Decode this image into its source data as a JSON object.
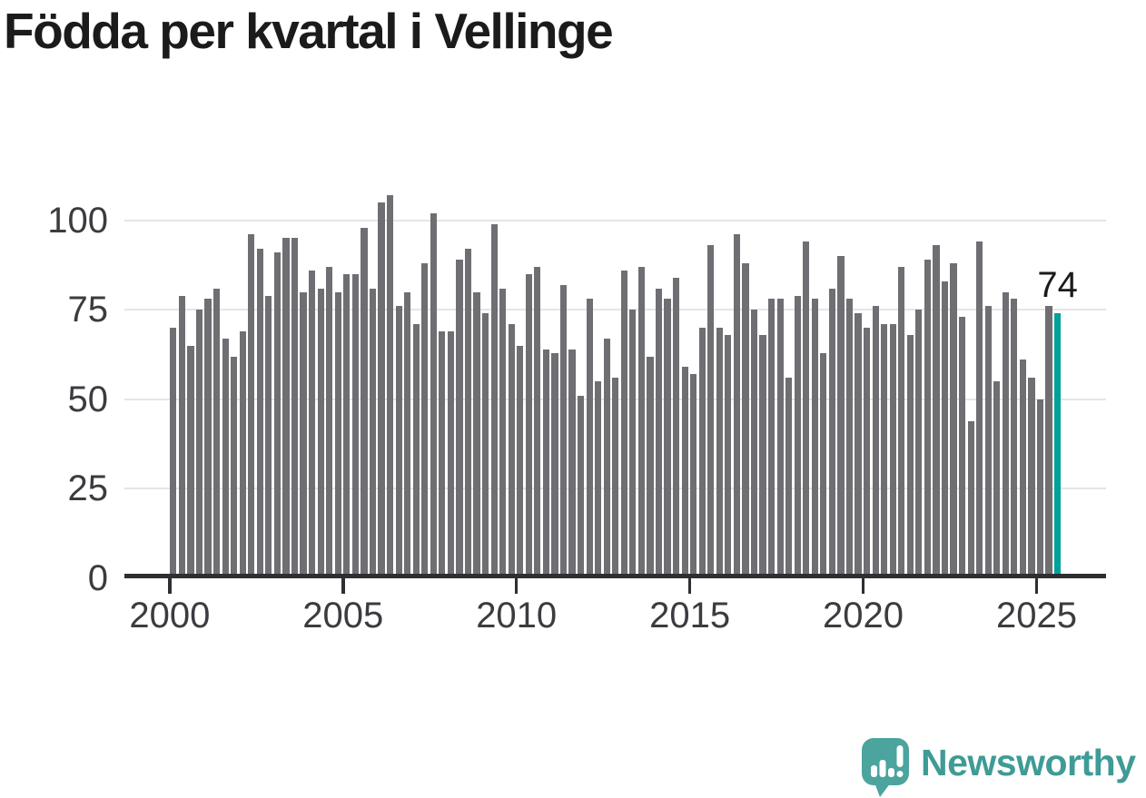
{
  "chart_data": {
    "type": "bar",
    "title": "Födda per kvartal i Vellinge",
    "xlabel": "",
    "ylabel": "",
    "x_start": "2000-Q1",
    "x_end": "2025-Q3",
    "x_tick_labels": [
      "2000",
      "2005",
      "2010",
      "2015",
      "2020",
      "2025"
    ],
    "quarters_per_x_tick": 20,
    "y_ticks": [
      0,
      25,
      50,
      75,
      100
    ],
    "ylim": [
      0,
      112
    ],
    "grid": true,
    "legend": "none",
    "values": [
      70,
      79,
      65,
      75,
      78,
      81,
      67,
      62,
      69,
      96,
      92,
      79,
      91,
      95,
      95,
      80,
      86,
      81,
      87,
      80,
      85,
      85,
      98,
      81,
      105,
      107,
      76,
      80,
      71,
      88,
      102,
      69,
      69,
      89,
      92,
      80,
      74,
      99,
      81,
      71,
      65,
      85,
      87,
      64,
      63,
      82,
      64,
      51,
      78,
      55,
      67,
      56,
      86,
      75,
      87,
      62,
      81,
      78,
      84,
      59,
      57,
      70,
      93,
      70,
      68,
      96,
      88,
      75,
      68,
      78,
      78,
      56,
      79,
      94,
      78,
      63,
      81,
      90,
      78,
      74,
      70,
      76,
      71,
      71,
      87,
      68,
      75,
      89,
      93,
      83,
      88,
      73,
      44,
      94,
      76,
      55,
      80,
      78,
      61,
      56,
      50,
      76,
      74
    ],
    "highlight_index": 102,
    "annotation": {
      "label": "74",
      "value": 74,
      "quarter": "2025-Q3"
    },
    "colors": {
      "bar": "#6E6E73",
      "highlight": "#00A09B",
      "axis": "#2E2E33",
      "gridline": "#E5E5E8",
      "tick_label": "#3B3B40",
      "title": "#1B1B1B",
      "annotation": "#1B1B1B"
    }
  },
  "logo": {
    "text": "Newsworthy",
    "text_color": "#3F9B95",
    "icon_color": "#4BA49E",
    "icon": "speech-bubble-bar-chart"
  }
}
